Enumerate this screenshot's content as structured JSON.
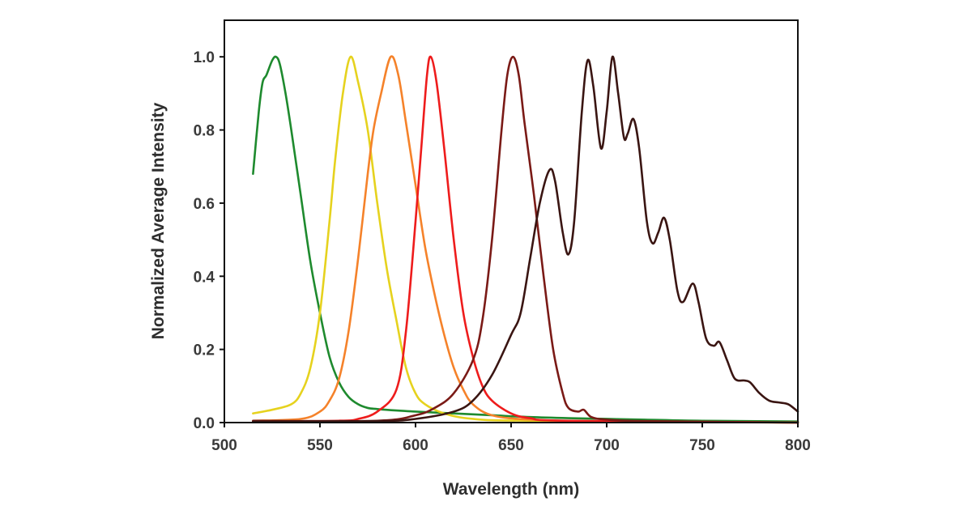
{
  "chart_data": {
    "type": "line",
    "title": "",
    "xlabel": "Wavelength (nm)",
    "ylabel": "Normalized Average Intensity",
    "xlim": [
      500,
      800
    ],
    "ylim": [
      0,
      1.1
    ],
    "xticks": [
      "500",
      "550",
      "600",
      "650",
      "700",
      "750",
      "800"
    ],
    "yticks": [
      "0.0",
      "0.2",
      "0.4",
      "0.6",
      "0.8",
      "1.0"
    ],
    "grid": false,
    "legend": "none",
    "series": [
      {
        "color": "#1e8a2e",
        "x": [
          515,
          518,
          520,
          522,
          525,
          527,
          529,
          532,
          535,
          540,
          545,
          550,
          555,
          560,
          565,
          570,
          575,
          580,
          590,
          600,
          620,
          640,
          660,
          680,
          700,
          720,
          750,
          800
        ],
        "y": [
          0.68,
          0.85,
          0.93,
          0.95,
          0.99,
          1.0,
          0.98,
          0.9,
          0.8,
          0.62,
          0.44,
          0.3,
          0.18,
          0.11,
          0.07,
          0.05,
          0.04,
          0.037,
          0.033,
          0.03,
          0.025,
          0.02,
          0.015,
          0.012,
          0.01,
          0.008,
          0.005,
          0.003
        ]
      },
      {
        "color": "#e6d21e",
        "x": [
          515,
          525,
          535,
          540,
          545,
          550,
          555,
          558,
          562,
          566,
          570,
          575,
          580,
          585,
          590,
          595,
          600,
          605,
          615,
          630,
          660,
          800
        ],
        "y": [
          0.025,
          0.035,
          0.05,
          0.08,
          0.15,
          0.3,
          0.55,
          0.72,
          0.9,
          1.0,
          0.93,
          0.8,
          0.6,
          0.42,
          0.28,
          0.15,
          0.08,
          0.05,
          0.025,
          0.01,
          0.005,
          0
        ]
      },
      {
        "color": "#f5822a",
        "x": [
          515,
          540,
          550,
          555,
          560,
          565,
          570,
          575,
          578,
          582,
          587,
          591,
          595,
          600,
          605,
          610,
          615,
          620,
          625,
          630,
          640,
          660,
          700,
          800
        ],
        "y": [
          0.005,
          0.01,
          0.03,
          0.06,
          0.12,
          0.25,
          0.45,
          0.68,
          0.8,
          0.9,
          1.0,
          0.95,
          0.82,
          0.65,
          0.48,
          0.35,
          0.24,
          0.15,
          0.09,
          0.05,
          0.02,
          0.008,
          0.003,
          0
        ]
      },
      {
        "color": "#ee1c1c",
        "x": [
          515,
          560,
          570,
          580,
          590,
          595,
          600,
          603,
          606,
          608,
          611,
          615,
          620,
          625,
          630,
          635,
          640,
          650,
          660,
          680,
          800
        ],
        "y": [
          0.003,
          0.005,
          0.01,
          0.03,
          0.09,
          0.25,
          0.55,
          0.75,
          0.95,
          1.0,
          0.93,
          0.75,
          0.5,
          0.3,
          0.18,
          0.1,
          0.06,
          0.025,
          0.012,
          0.005,
          0
        ]
      },
      {
        "color": "#7a1a16",
        "x": [
          515,
          580,
          600,
          610,
          620,
          630,
          635,
          640,
          645,
          648,
          651,
          654,
          657,
          662,
          667,
          672,
          677,
          680,
          685,
          688,
          692,
          700,
          720,
          800
        ],
        "y": [
          0.005,
          0.005,
          0.02,
          0.04,
          0.08,
          0.17,
          0.28,
          0.5,
          0.8,
          0.95,
          1.0,
          0.95,
          0.82,
          0.62,
          0.4,
          0.2,
          0.08,
          0.04,
          0.03,
          0.035,
          0.015,
          0.008,
          0.004,
          0
        ]
      },
      {
        "color": "#3a1512",
        "x": [
          515,
          580,
          600,
          620,
          630,
          640,
          650,
          655,
          660,
          665,
          670,
          673,
          677,
          680,
          683,
          687,
          690,
          693,
          697,
          700,
          703,
          706,
          709,
          711,
          714,
          717,
          721,
          724,
          727,
          730,
          733,
          737,
          740,
          745,
          748,
          752,
          756,
          759,
          763,
          767,
          772,
          775,
          780,
          785,
          790,
          795,
          800
        ],
        "y": [
          0.003,
          0.004,
          0.01,
          0.03,
          0.06,
          0.13,
          0.24,
          0.3,
          0.45,
          0.6,
          0.69,
          0.66,
          0.52,
          0.46,
          0.55,
          0.85,
          0.99,
          0.92,
          0.75,
          0.85,
          1.0,
          0.9,
          0.78,
          0.79,
          0.83,
          0.75,
          0.55,
          0.49,
          0.52,
          0.56,
          0.5,
          0.36,
          0.33,
          0.38,
          0.33,
          0.23,
          0.21,
          0.22,
          0.17,
          0.12,
          0.115,
          0.11,
          0.08,
          0.06,
          0.055,
          0.05,
          0.03
        ]
      }
    ]
  }
}
